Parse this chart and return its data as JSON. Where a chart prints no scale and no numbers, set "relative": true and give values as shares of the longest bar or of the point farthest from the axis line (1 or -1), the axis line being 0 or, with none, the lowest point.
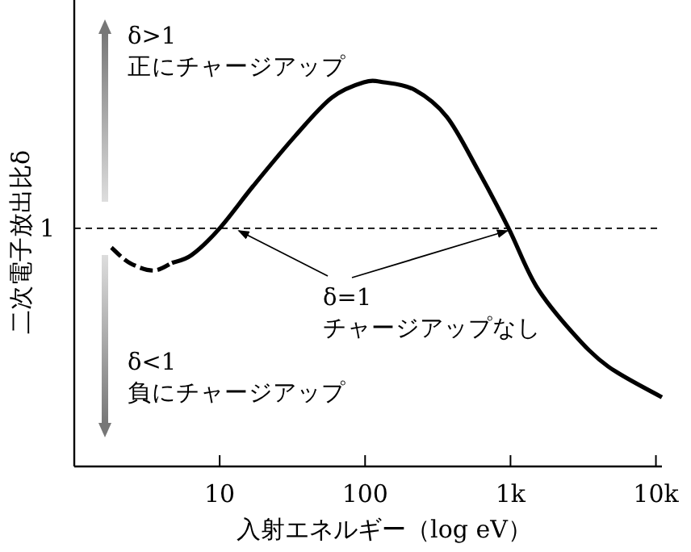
{
  "chart_data": {
    "type": "line",
    "relative": true,
    "log": "x",
    "xlabel": "入射エネルギー（log eV）",
    "ylabel": "二次電子放出比δ",
    "xlim": [
      1,
      11000
    ],
    "xticks": [
      10,
      100,
      {
        "value": 1000,
        "label": "1k"
      },
      {
        "value": 10000,
        "label": "10k"
      }
    ],
    "series": [
      {
        "color": "#000000",
        "line_style": "dashed",
        "x": [
          1.8,
          2.4,
          3.5,
          4.7
        ],
        "values": [
          0.57,
          0.53,
          0.51,
          0.53
        ]
      },
      {
        "color": "#000000",
        "line_style": "solid",
        "x": [
          4.7,
          6.4,
          10,
          17,
          33,
          59,
          98,
          135,
          220,
          365,
          600,
          970,
          1500,
          2650,
          4700,
          11000
        ],
        "values": [
          0.53,
          0.55,
          0.62,
          0.73,
          0.86,
          0.96,
          1.0,
          1.0,
          0.98,
          0.91,
          0.77,
          0.62,
          0.47,
          0.35,
          0.26,
          0.18
        ]
      }
    ],
    "ref_lines": [
      {
        "axis": "y",
        "value": 0.62,
        "label": "1",
        "line_style": "dashed",
        "color": "#000000"
      }
    ],
    "annotations": [
      "δ>1\n正にチャージアップ",
      "δ<1\n負にチャージアップ",
      "δ=1\nチャージアップなし"
    ]
  }
}
